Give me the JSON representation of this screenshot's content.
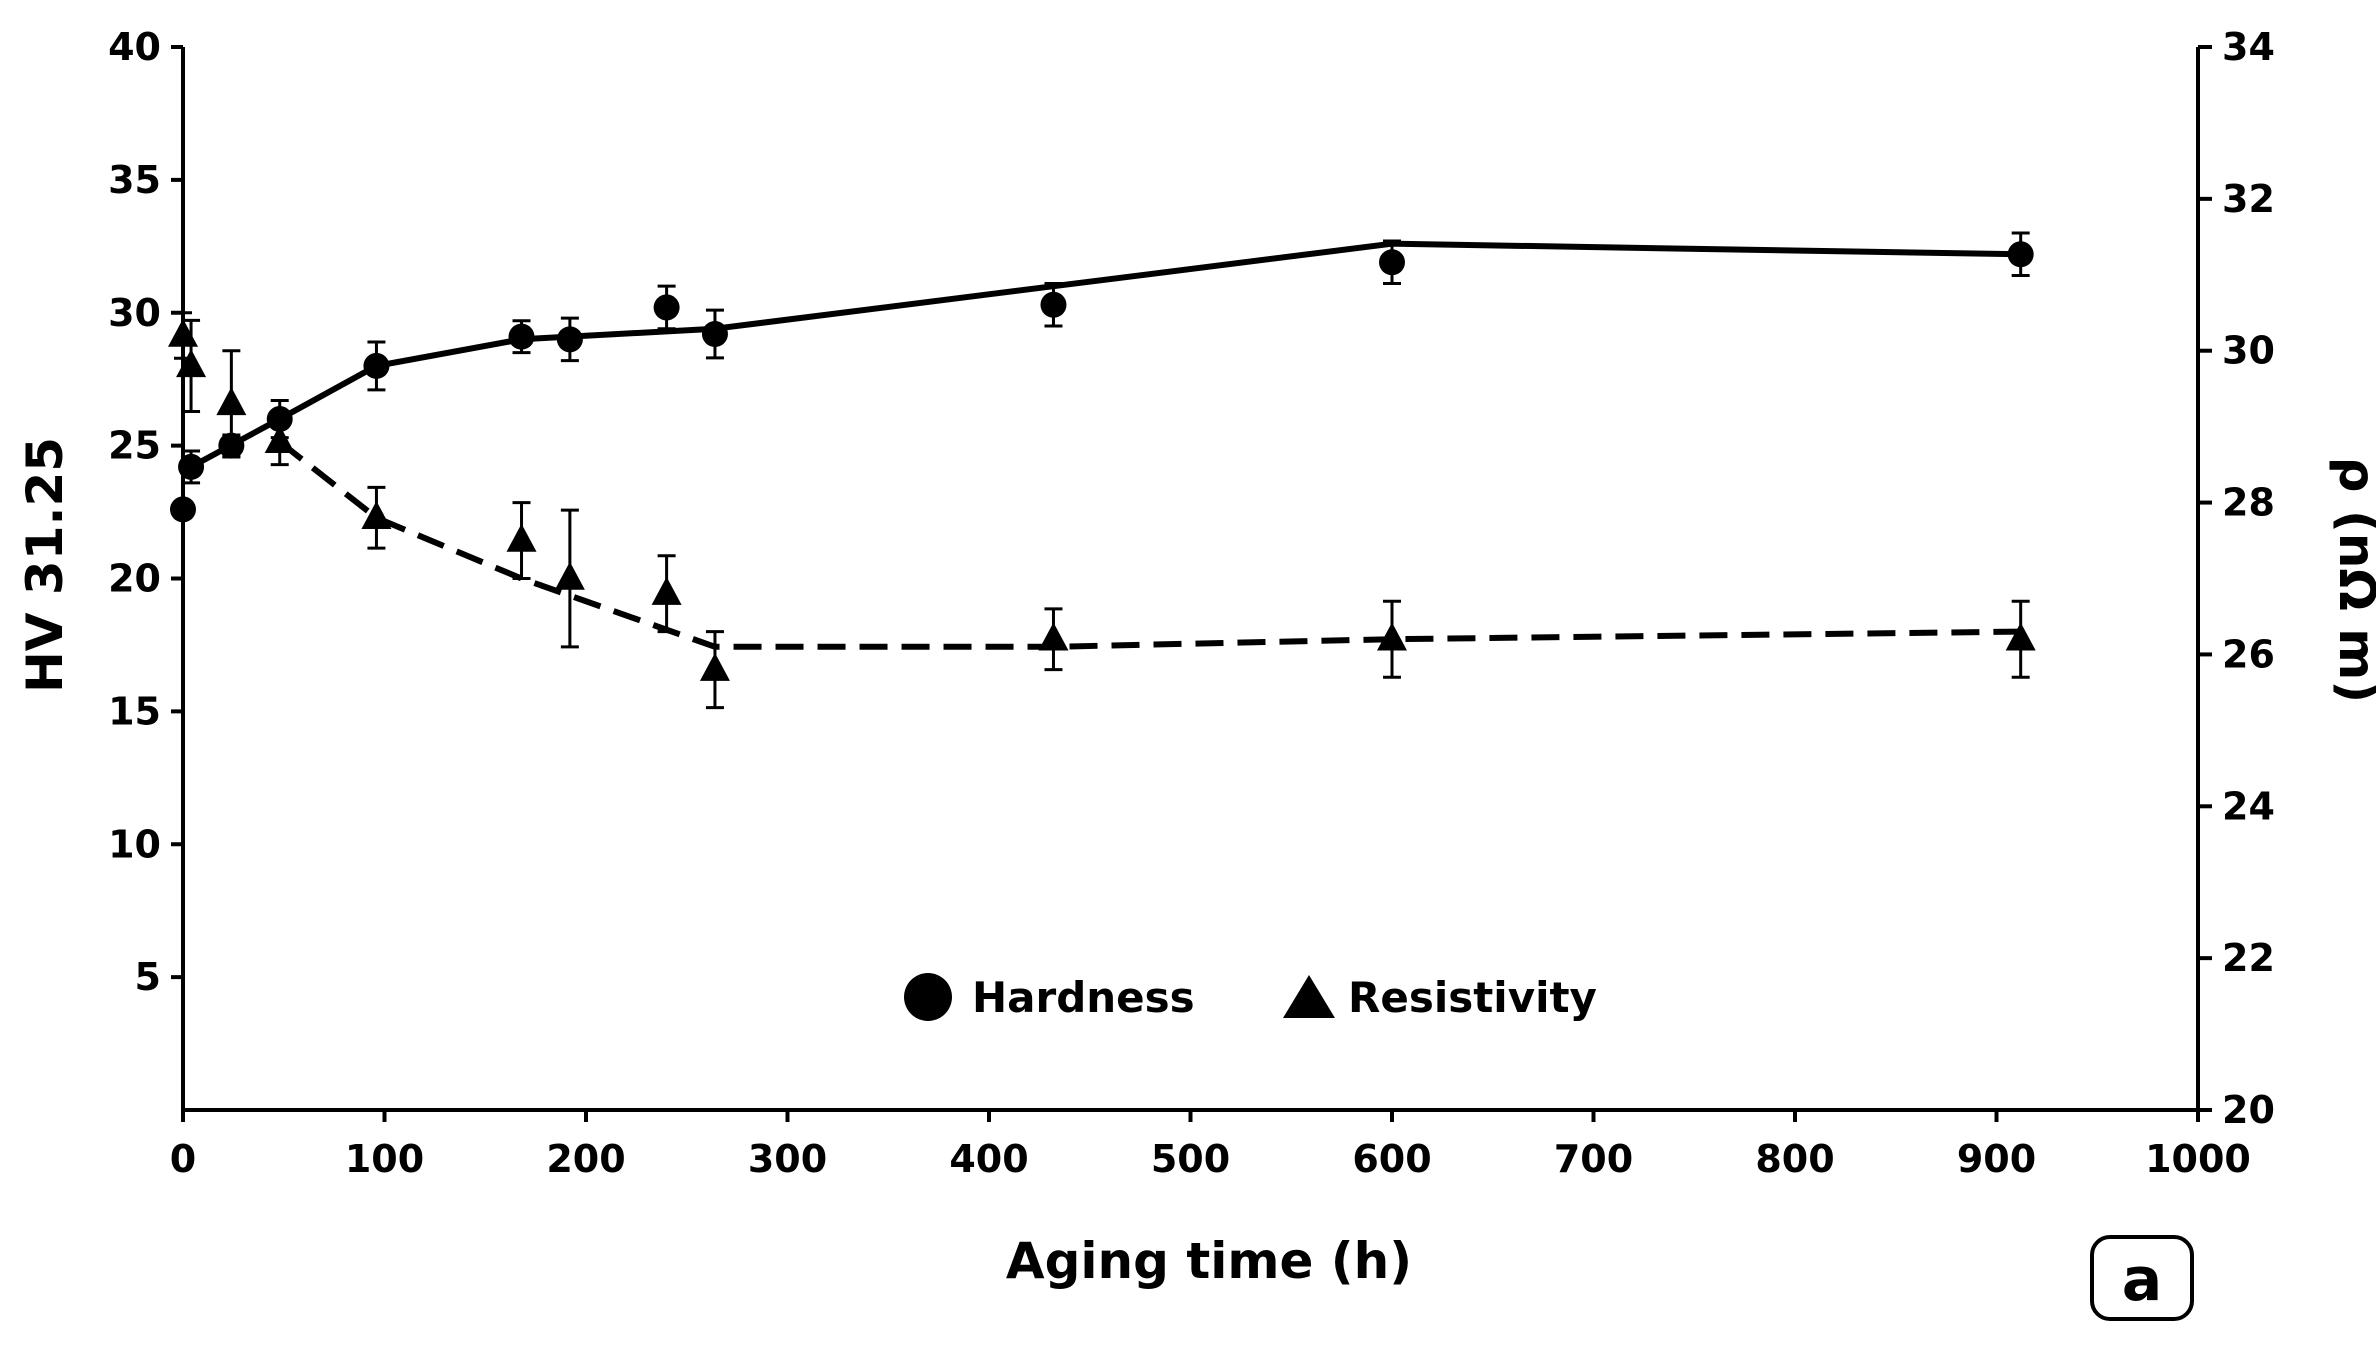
{
  "chart_data": {
    "type": "line",
    "x_axis": {
      "label": "Aging time (h)",
      "lim": [
        0,
        1000
      ],
      "ticks": [
        0,
        100,
        200,
        300,
        400,
        500,
        600,
        700,
        800,
        900,
        1000
      ]
    },
    "y_axis_left": {
      "label": "HV 31.25",
      "lim": [
        0,
        40
      ],
      "ticks": [
        5,
        10,
        15,
        20,
        25,
        30,
        35,
        40
      ]
    },
    "y_axis_right": {
      "label": "ρ (nΩ m)",
      "lim": [
        20,
        34
      ],
      "ticks": [
        20,
        22,
        24,
        26,
        28,
        30,
        32,
        34
      ]
    },
    "series": [
      {
        "name": "Hardness",
        "axis": "left",
        "marker": "circle",
        "points": [
          {
            "x": 0,
            "y": 22.6,
            "err": 0
          },
          {
            "x": 4,
            "y": 24.2,
            "err": 0.6
          },
          {
            "x": 24,
            "y": 25.0,
            "err": 0.4
          },
          {
            "x": 48,
            "y": 26.0,
            "err": 0.7
          },
          {
            "x": 96,
            "y": 28.0,
            "err": 0.9
          },
          {
            "x": 168,
            "y": 29.1,
            "err": 0.6
          },
          {
            "x": 192,
            "y": 29.0,
            "err": 0.8
          },
          {
            "x": 240,
            "y": 30.2,
            "err": 0.8
          },
          {
            "x": 264,
            "y": 29.2,
            "err": 0.9
          },
          {
            "x": 432,
            "y": 30.3,
            "err": 0.8
          },
          {
            "x": 600,
            "y": 31.9,
            "err": 0.8
          },
          {
            "x": 912,
            "y": 32.2,
            "err": 0.8
          }
        ],
        "trend": {
          "style": "solid",
          "x": [
            4,
            48,
            96,
            168,
            264,
            432,
            600,
            912
          ],
          "y": [
            24.2,
            26.0,
            28.0,
            29.0,
            29.4,
            31.0,
            32.6,
            32.2
          ]
        }
      },
      {
        "name": "Resistivity",
        "axis": "right",
        "marker": "triangle",
        "points": [
          {
            "x": 0,
            "y": 30.2,
            "err": 0.3
          },
          {
            "x": 4,
            "y": 29.8,
            "err": 0.6
          },
          {
            "x": 24,
            "y": 29.3,
            "err": 0.7
          },
          {
            "x": 48,
            "y": 28.8,
            "err": 0.3
          },
          {
            "x": 96,
            "y": 27.8,
            "err": 0.4
          },
          {
            "x": 168,
            "y": 27.5,
            "err": 0.5
          },
          {
            "x": 192,
            "y": 27.0,
            "err": 0.9
          },
          {
            "x": 240,
            "y": 26.8,
            "err": 0.5
          },
          {
            "x": 264,
            "y": 25.8,
            "err": 0.5
          },
          {
            "x": 432,
            "y": 26.2,
            "err": 0.4
          },
          {
            "x": 600,
            "y": 26.2,
            "err": 0.5
          },
          {
            "x": 912,
            "y": 26.2,
            "err": 0.5
          }
        ],
        "trend": {
          "style": "dashed",
          "x": [
            48,
            96,
            168,
            264,
            432,
            600,
            912
          ],
          "y": [
            28.8,
            27.8,
            27.0,
            26.1,
            26.1,
            26.2,
            26.3
          ]
        }
      }
    ],
    "legend": {
      "placement": "bottom-center",
      "entries": [
        "Hardness",
        "Resistivity"
      ]
    },
    "panel_label": "a",
    "grid": false
  }
}
